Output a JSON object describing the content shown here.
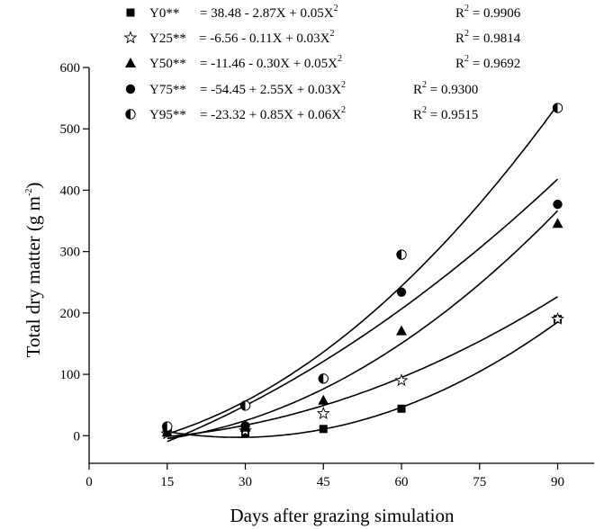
{
  "chart_data": {
    "type": "scatter",
    "xlabel": "Days after grazing simulation",
    "ylabel": "Total dry matter (g m",
    "ylabel_sup": "-2",
    "ylabel_close": ")",
    "xlim": [
      0,
      97
    ],
    "ylim": [
      -45,
      600
    ],
    "x_ticks": [
      0,
      15,
      30,
      45,
      60,
      75,
      90
    ],
    "y_ticks": [
      0,
      100,
      200,
      300,
      400,
      500,
      600
    ],
    "grid": false,
    "legend_position": "top",
    "series": [
      {
        "name": "Y0**",
        "marker": "square",
        "equation": "=  38.48 - 2.87X + 0.05X",
        "r2_value": "= 0.9906",
        "coef": [
          38.48,
          -2.87,
          0.05
        ],
        "x": [
          15,
          30,
          45,
          60,
          90
        ],
        "y": [
          5,
          4,
          11,
          44,
          190
        ]
      },
      {
        "name": "Y25**",
        "marker": "star",
        "equation": "=   -6.56 - 0.11X + 0.03X",
        "r2_value": "= 0.9814",
        "coef": [
          -6.56,
          -0.11,
          0.03
        ],
        "x": [
          15,
          30,
          45,
          60,
          90
        ],
        "y": [
          3,
          8,
          36,
          90,
          190
        ]
      },
      {
        "name": "Y50**",
        "marker": "triangle",
        "equation": "= -11.46 - 0.30X + 0.05X",
        "r2_value": "= 0.9692",
        "coef": [
          -11.46,
          -0.3,
          0.05
        ],
        "x": [
          15,
          30,
          45,
          60,
          90
        ],
        "y": [
          6,
          14,
          58,
          171,
          346
        ]
      },
      {
        "name": "Y75**",
        "marker": "circle",
        "equation": "= -54.45 + 2.55X + 0.03X",
        "r2_value": "= 0.9300",
        "coef": [
          -54.45,
          2.55,
          0.03
        ],
        "x": [
          15,
          30,
          45,
          60,
          90
        ],
        "y": [
          10,
          16,
          93,
          234,
          377
        ]
      },
      {
        "name": "Y95**",
        "marker": "half-circle",
        "equation": "= -23.32 + 0.85X + 0.06X",
        "r2_value": "= 0.9515",
        "coef": [
          -23.32,
          0.85,
          0.06
        ],
        "x": [
          15,
          30,
          45,
          60,
          90
        ],
        "y": [
          15,
          49,
          93,
          295,
          534
        ]
      }
    ],
    "equation_sup": "2",
    "r2_label": "R",
    "r2_sup": "2"
  }
}
